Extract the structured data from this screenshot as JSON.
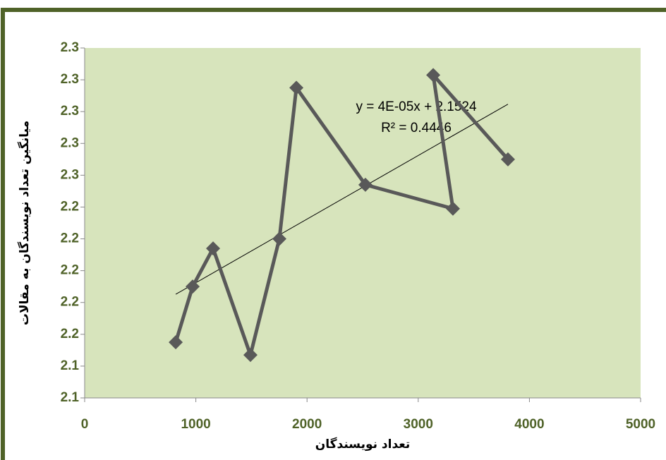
{
  "chart_data": {
    "type": "line",
    "x_label": "تعداد نویسندگان",
    "y_label": "میانگین تعداد نویسندگان به مقالات",
    "x": [
      819,
      971,
      1155,
      1491,
      1751,
      1904,
      2525,
      3312,
      3135,
      3807
    ],
    "series": [
      {
        "color": "#595959",
        "values": [
          2.155,
          2.19,
          2.214,
          2.147,
          2.22,
          2.315,
          2.254,
          2.239,
          2.323,
          2.27
        ]
      }
    ],
    "xlim": [
      0,
      5000
    ],
    "xticks": [
      0,
      1000,
      2000,
      3000,
      4000,
      5000
    ],
    "ylim": [
      2.12,
      2.34
    ],
    "yticks": [
      {
        "value": 2.12,
        "label": "2.1"
      },
      {
        "value": 2.14,
        "label": "2.1"
      },
      {
        "value": 2.16,
        "label": "2.2"
      },
      {
        "value": 2.18,
        "label": "2.2"
      },
      {
        "value": 2.2,
        "label": "2.2"
      },
      {
        "value": 2.22,
        "label": "2.2"
      },
      {
        "value": 2.24,
        "label": "2.2"
      },
      {
        "value": 2.26,
        "label": "2.3"
      },
      {
        "value": 2.28,
        "label": "2.3"
      },
      {
        "value": 2.3,
        "label": "2.3"
      },
      {
        "value": 2.32,
        "label": "2.3"
      },
      {
        "value": 2.34,
        "label": "2.3"
      }
    ],
    "plot_background": "#d7e4bc",
    "trendline": {
      "slope": 4e-05,
      "intercept": 2.1524,
      "label": "y = 4E-05x + 2.1524",
      "r2_label": "R² = 0.4446"
    }
  }
}
